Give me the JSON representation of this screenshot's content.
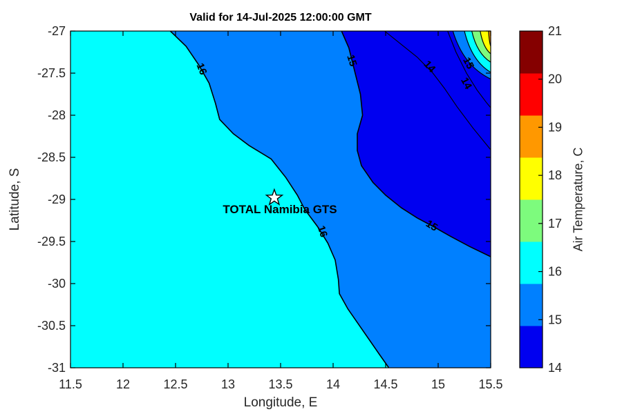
{
  "chart_data": {
    "type": "filled_contour_map",
    "title": "Valid for 14-Jul-2025 12:00:00 GMT",
    "xlabel": "Longitude, E",
    "ylabel": "Latitude, S",
    "xlim": [
      11.5,
      15.5
    ],
    "ylim": [
      -31,
      -27
    ],
    "x_ticks": [
      11.5,
      12,
      12.5,
      13,
      13.5,
      14,
      14.5,
      15,
      15.5
    ],
    "x_tick_labels": [
      "11.5",
      "12",
      "12.5",
      "13",
      "13.5",
      "14",
      "14.5",
      "15",
      "15.5"
    ],
    "y_ticks": [
      -27,
      -27.5,
      -28,
      -28.5,
      -29,
      -29.5,
      -30,
      -30.5,
      -31
    ],
    "y_tick_labels": [
      "-27",
      "-27.5",
      "-28",
      "-28.5",
      "-29",
      "-29.5",
      "-30",
      "-30.5",
      "-31"
    ],
    "grid": false,
    "legend_position": "colorbar-right",
    "colorbar": {
      "label": "Air Temperature, C",
      "min": 14,
      "max": 21,
      "tick_values": [
        14,
        15,
        16,
        17,
        18,
        19,
        20,
        21
      ],
      "tick_labels": [
        "14",
        "15",
        "16",
        "17",
        "18",
        "19",
        "20",
        "21"
      ],
      "band_colors_bottom_to_top": [
        "#0000F0",
        "#0080FF",
        "#00FFFF",
        "#7DFB7D",
        "#FFFF00",
        "#FF9800",
        "#FF0000",
        "#850000"
      ]
    },
    "station": {
      "name": "TOTAL Namibia GTS",
      "lon": 13.44,
      "lat": -28.98,
      "marker": "white-pentagram"
    },
    "filled_regions": [
      {
        "band_c": "16-17",
        "color": "#00FFFF",
        "where": "western/offshore area, left of the 16 C isotherm"
      },
      {
        "band_c": "15-16",
        "color": "#0080FF",
        "where": "between the 16 C and 15 C isotherms"
      },
      {
        "band_c": "14-15",
        "color": "#0000F0",
        "where": "north-eastern area beyond the 15 C isotherm"
      },
      {
        "band_c": "15-20",
        "color": "rings",
        "where": "warm bullseye in extreme top-right corner (rings 15,16,17,18,19 C)"
      }
    ],
    "isolines": [
      {
        "value": 16,
        "weight": "major",
        "path": [
          [
            12.45,
            -27.0
          ],
          [
            12.6,
            -27.18
          ],
          [
            12.72,
            -27.4
          ],
          [
            12.82,
            -27.62
          ],
          [
            12.88,
            -27.86
          ],
          [
            12.92,
            -28.05
          ],
          [
            13.05,
            -28.22
          ],
          [
            13.2,
            -28.36
          ],
          [
            13.41,
            -28.52
          ],
          [
            13.55,
            -28.74
          ],
          [
            13.66,
            -28.95
          ],
          [
            13.73,
            -29.12
          ],
          [
            13.85,
            -29.32
          ],
          [
            13.95,
            -29.52
          ],
          [
            14.02,
            -29.72
          ],
          [
            14.05,
            -29.95
          ],
          [
            14.06,
            -30.12
          ],
          [
            14.14,
            -30.3
          ],
          [
            14.24,
            -30.48
          ],
          [
            14.34,
            -30.66
          ],
          [
            14.44,
            -30.84
          ],
          [
            14.53,
            -31.0
          ]
        ]
      },
      {
        "value": 15,
        "weight": "major",
        "path": [
          [
            14.08,
            -27.0
          ],
          [
            14.15,
            -27.2
          ],
          [
            14.2,
            -27.45
          ],
          [
            14.26,
            -27.75
          ],
          [
            14.28,
            -28.0
          ],
          [
            14.23,
            -28.22
          ],
          [
            14.23,
            -28.42
          ],
          [
            14.27,
            -28.6
          ],
          [
            14.38,
            -28.8
          ],
          [
            14.5,
            -28.95
          ],
          [
            14.65,
            -29.1
          ],
          [
            14.8,
            -29.22
          ],
          [
            14.95,
            -29.32
          ],
          [
            15.12,
            -29.44
          ],
          [
            15.3,
            -29.56
          ],
          [
            15.5,
            -29.68
          ]
        ]
      },
      {
        "value": 14,
        "weight": "thin",
        "path": [
          [
            14.49,
            -27.0
          ],
          [
            14.66,
            -27.17
          ],
          [
            14.8,
            -27.31
          ],
          [
            14.95,
            -27.5
          ],
          [
            15.06,
            -27.68
          ],
          [
            15.18,
            -27.9
          ],
          [
            15.33,
            -28.15
          ],
          [
            15.5,
            -28.41
          ]
        ]
      },
      {
        "value": 14,
        "weight": "thin",
        "path": [
          [
            15.09,
            -27.0
          ],
          [
            15.17,
            -27.25
          ],
          [
            15.27,
            -27.5
          ],
          [
            15.37,
            -27.7
          ],
          [
            15.46,
            -27.85
          ],
          [
            15.5,
            -27.91
          ]
        ]
      }
    ],
    "corner_rings_outer_to_inner": [
      {
        "value": 15,
        "top_lon": 15.14,
        "right_lat": -27.57,
        "color": "#0080FF"
      },
      {
        "value": 16,
        "top_lon": 15.25,
        "right_lat": -27.49,
        "color": "#00FFFF"
      },
      {
        "value": 17,
        "top_lon": 15.32,
        "right_lat": -27.37,
        "color": "#7DFB7D"
      },
      {
        "value": 18,
        "top_lon": 15.4,
        "right_lat": -27.27,
        "color": "#FFFF00"
      },
      {
        "value": 19,
        "top_lon": 15.48,
        "right_lat": -27.18,
        "color": "#FF9800"
      }
    ],
    "contour_labels": [
      {
        "text": "16",
        "lon": 12.75,
        "lat": -27.45,
        "rotation_deg": 68
      },
      {
        "text": "15",
        "lon": 14.18,
        "lat": -27.35,
        "rotation_deg": 73
      },
      {
        "text": "14",
        "lon": 14.92,
        "lat": -27.42,
        "rotation_deg": 48
      },
      {
        "text": "15",
        "lon": 15.29,
        "lat": -27.38,
        "rotation_deg": 62
      },
      {
        "text": "14",
        "lon": 15.27,
        "lat": -27.62,
        "rotation_deg": 62
      },
      {
        "text": "16",
        "lon": 13.9,
        "lat": -29.38,
        "rotation_deg": 72
      },
      {
        "text": "15",
        "lon": 14.94,
        "lat": -29.31,
        "rotation_deg": 32
      }
    ],
    "colors": {
      "background": "#FFFFFF",
      "frame": "#000000",
      "isoline": "#000000",
      "tick_label": "#262626"
    }
  }
}
